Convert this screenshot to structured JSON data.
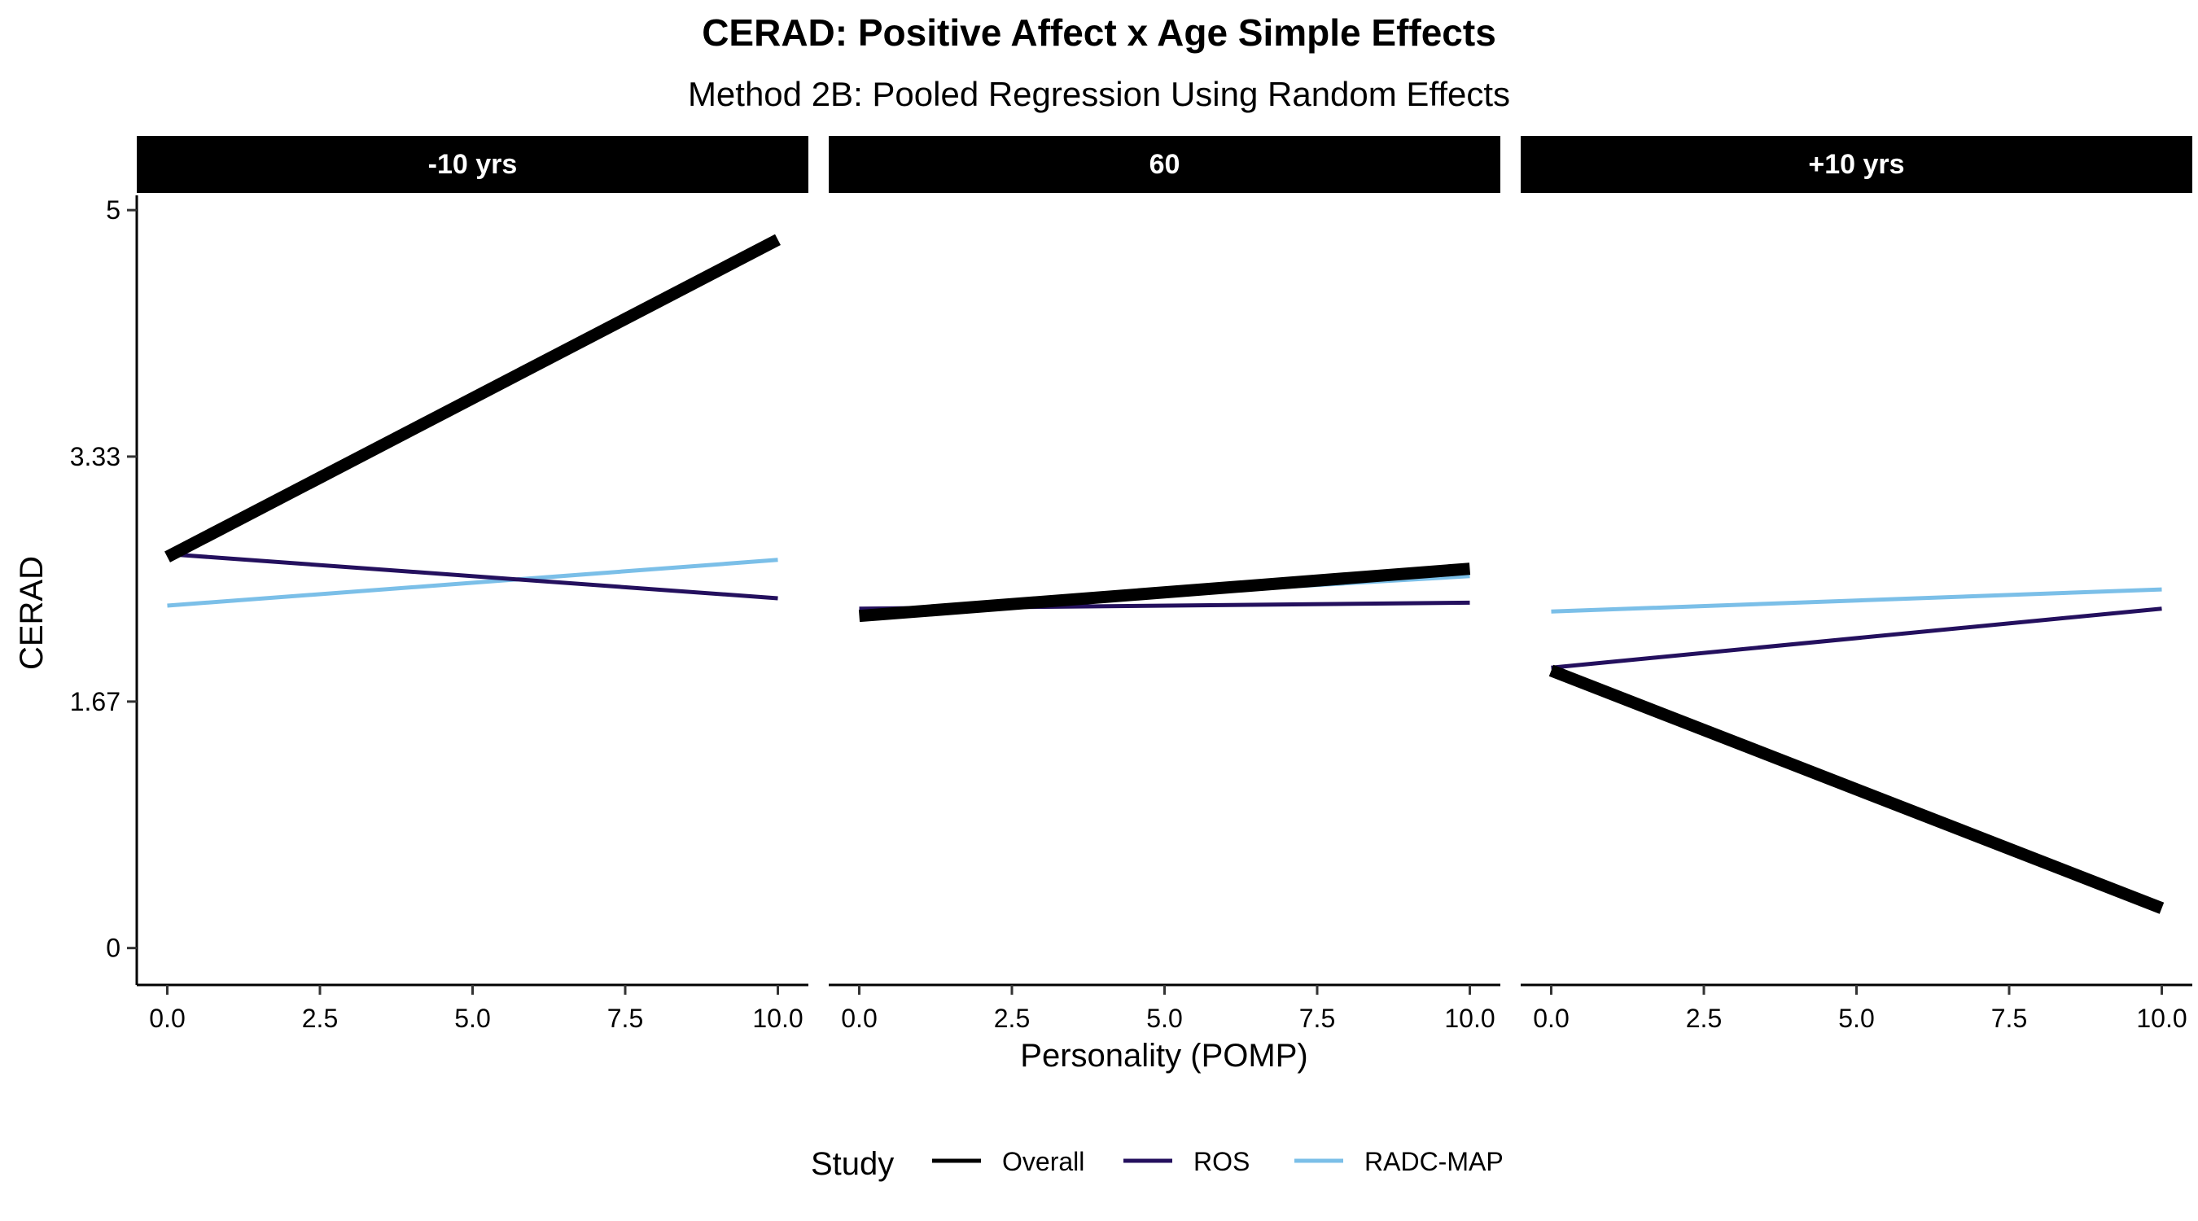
{
  "chart_data": {
    "type": "line",
    "title": "CERAD: Positive Affect x Age Simple Effects",
    "subtitle": "Method 2B: Pooled Regression Using Random Effects",
    "xlabel": "Personality (POMP)",
    "ylabel": "CERAD",
    "xlim": [
      -0.5,
      10.5
    ],
    "ylim": [
      -0.25,
      5.1
    ],
    "x_ticks": [
      0,
      2.5,
      5,
      7.5,
      10
    ],
    "x_tick_labels": [
      "0.0",
      "2.5",
      "5.0",
      "7.5",
      "10.0"
    ],
    "y_ticks": [
      0,
      1.67,
      3.33,
      5
    ],
    "y_tick_labels": [
      "0",
      "1.67",
      "3.33",
      "5"
    ],
    "grid": false,
    "legend": {
      "title": "Study",
      "position": "bottom",
      "entries": [
        "Overall",
        "ROS",
        "RADC-MAP"
      ]
    },
    "series_styles": [
      {
        "name": "Overall",
        "color": "#000000"
      },
      {
        "name": "ROS",
        "color": "#24105e"
      },
      {
        "name": "RADC-MAP",
        "color": "#7bbfe8"
      }
    ],
    "panels": [
      {
        "label": "-10 yrs",
        "series": [
          {
            "name": "Overall",
            "x": [
              0,
              10
            ],
            "y": [
              2.65,
              4.8
            ]
          },
          {
            "name": "ROS",
            "x": [
              0,
              10
            ],
            "y": [
              2.67,
              2.37
            ]
          },
          {
            "name": "RADC-MAP",
            "x": [
              0,
              10
            ],
            "y": [
              2.32,
              2.63
            ]
          }
        ]
      },
      {
        "label": "60",
        "series": [
          {
            "name": "Overall",
            "x": [
              0,
              10
            ],
            "y": [
              2.25,
              2.57
            ]
          },
          {
            "name": "ROS",
            "x": [
              0,
              10
            ],
            "y": [
              2.3,
              2.34
            ]
          },
          {
            "name": "RADC-MAP",
            "x": [
              0,
              10
            ],
            "y": [
              2.28,
              2.52
            ]
          }
        ]
      },
      {
        "label": "+10 yrs",
        "series": [
          {
            "name": "Overall",
            "x": [
              0,
              10
            ],
            "y": [
              1.88,
              0.27
            ]
          },
          {
            "name": "ROS",
            "x": [
              0,
              10
            ],
            "y": [
              1.9,
              2.3
            ]
          },
          {
            "name": "RADC-MAP",
            "x": [
              0,
              10
            ],
            "y": [
              2.28,
              2.43
            ]
          }
        ]
      }
    ]
  }
}
